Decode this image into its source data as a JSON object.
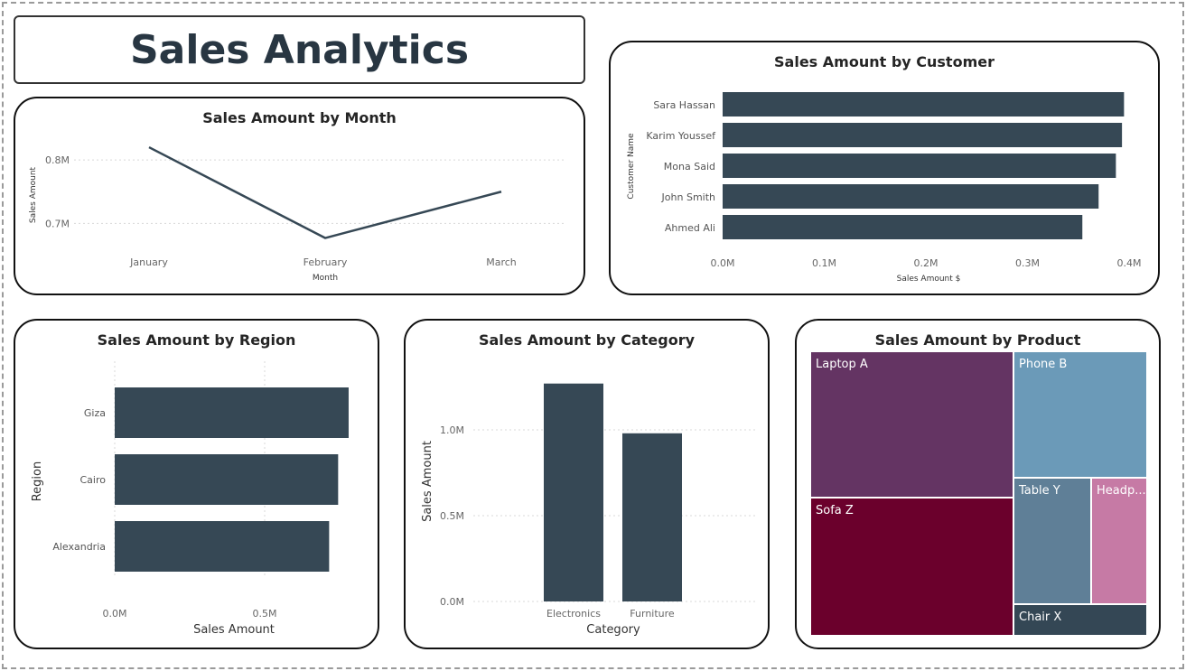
{
  "header": {
    "title": "Sales Analytics"
  },
  "colors": {
    "bar": "#364855",
    "grid": "#d8d8d8"
  },
  "chart_data": [
    {
      "id": "month",
      "type": "line",
      "title": "Sales Amount by Month",
      "xlabel": "Month",
      "ylabel": "Sales Amount",
      "categories": [
        "January",
        "February",
        "March"
      ],
      "values": [
        0.82,
        0.677,
        0.75
      ],
      "unit": "M",
      "yticks": [
        "0.7M",
        "0.8M"
      ],
      "ytick_values": [
        0.7,
        0.8
      ],
      "ylim": [
        0.655,
        0.84
      ],
      "grid": true
    },
    {
      "id": "customer",
      "type": "bar",
      "orientation": "horizontal",
      "title": "Sales Amount by Customer",
      "xlabel": "Sales Amount $",
      "ylabel": "Customer Name",
      "categories": [
        "Sara Hassan",
        "Karim Youssef",
        "Mona Said",
        "John Smith",
        "Ahmed Ali"
      ],
      "values": [
        0.395,
        0.393,
        0.387,
        0.37,
        0.354
      ],
      "xticks": [
        "0.0M",
        "0.1M",
        "0.2M",
        "0.3M",
        "0.4M"
      ],
      "xlim": [
        0,
        0.4
      ]
    },
    {
      "id": "region",
      "type": "bar",
      "orientation": "horizontal",
      "title": "Sales Amount by Region",
      "xlabel": "Sales Amount",
      "ylabel": "Region",
      "categories": [
        "Giza",
        "Cairo",
        "Alexandria"
      ],
      "values": [
        0.78,
        0.745,
        0.715
      ],
      "xticks": [
        "0.0M",
        "0.5M"
      ],
      "xlim": [
        0,
        0.85
      ],
      "grid": true
    },
    {
      "id": "category",
      "type": "bar",
      "orientation": "vertical",
      "title": "Sales Amount by Category",
      "xlabel": "Category",
      "ylabel": "Sales Amount",
      "categories": [
        "Electronics",
        "Furniture"
      ],
      "values": [
        1.27,
        0.98
      ],
      "yticks": [
        "0.0M",
        "0.5M",
        "1.0M"
      ],
      "ylim": [
        0,
        1.3
      ],
      "grid": true
    },
    {
      "id": "product",
      "type": "treemap",
      "title": "Sales Amount by Product",
      "items": [
        {
          "label": "Laptop A",
          "color": "#643463"
        },
        {
          "label": "Sofa Z",
          "color": "#6B002C"
        },
        {
          "label": "Phone B",
          "color": "#6B9AB8"
        },
        {
          "label": "Table Y",
          "color": "#5F7F97"
        },
        {
          "label": "Headp...",
          "color": "#C67AA5"
        },
        {
          "label": "Chair X",
          "color": "#344755"
        }
      ]
    }
  ]
}
